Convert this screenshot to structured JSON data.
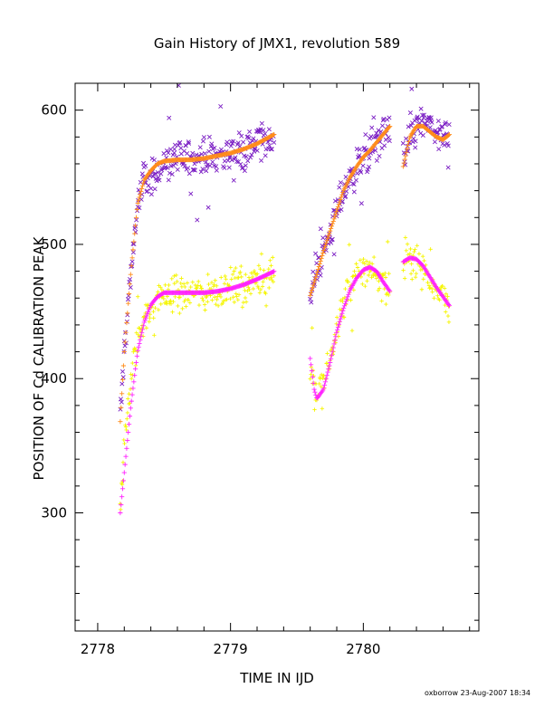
{
  "chart_data": {
    "type": "scatter",
    "title": "Gain History of JMX1, revolution 589",
    "xlabel": "TIME IN IJD",
    "ylabel": "POSITION OF Cd CALIBRATION PEAK",
    "footer": "oxborrow 23-Aug-2007 18:34",
    "xlim": [
      2777.83,
      2780.87
    ],
    "ylim": [
      212,
      620
    ],
    "x_major_ticks": [
      2778,
      2779,
      2780
    ],
    "x_tick_labels": [
      "2778",
      "2779",
      "2780"
    ],
    "y_major_ticks": [
      300,
      400,
      500,
      600
    ],
    "y_tick_labels": [
      "300",
      "400",
      "500",
      "600"
    ],
    "y_minor_step": 20,
    "x_minor_step": 0.2,
    "grid": false,
    "legend": "none",
    "colors": {
      "upper_points": "#7b1fc4",
      "upper_fit": "#ff8c1a",
      "lower_points": "#f5f500",
      "lower_fit": "#ff22ff"
    },
    "series": [
      {
        "role": "upper_points",
        "marker": "x",
        "segments": [
          {
            "x": [
              2778.17,
              2778.2,
              2778.25,
              2778.3,
              2778.35,
              2778.4,
              2778.45,
              2778.5,
              2778.6,
              2778.7,
              2778.8,
              2778.9,
              2779.0,
              2779.1,
              2779.2,
              2779.33
            ],
            "y": [
              370,
              420,
              480,
              530,
              545,
              550,
              555,
              560,
              563,
              565,
              565,
              566,
              568,
              570,
              575,
              580
            ]
          },
          {
            "x": [
              2779.6,
              2779.65,
              2779.7,
              2779.75,
              2779.8,
              2779.85,
              2779.9,
              2779.95,
              2780.0,
              2780.05,
              2780.1,
              2780.15,
              2780.2
            ],
            "y": [
              462,
              478,
              495,
              510,
              525,
              540,
              550,
              558,
              565,
              570,
              576,
              582,
              586
            ]
          },
          {
            "x": [
              2780.3,
              2780.35,
              2780.4,
              2780.45,
              2780.5,
              2780.55,
              2780.6,
              2780.65
            ],
            "y": [
              562,
              580,
              588,
              590,
              588,
              582,
              578,
              582
            ]
          }
        ],
        "scatter": 28
      },
      {
        "role": "upper_fit",
        "marker": "+",
        "segments": [
          {
            "x": [
              2778.17,
              2778.2,
              2778.25,
              2778.3,
              2778.35,
              2778.4,
              2778.45,
              2778.5,
              2778.6,
              2778.7,
              2778.8,
              2778.9,
              2779.0,
              2779.1,
              2779.2,
              2779.33
            ],
            "y": [
              368,
              420,
              480,
              530,
              548,
              555,
              560,
              562,
              563,
              563,
              564,
              566,
              568,
              571,
              575,
              582
            ]
          },
          {
            "x": [
              2779.6,
              2779.65,
              2779.7,
              2779.75,
              2779.8,
              2779.85,
              2779.9,
              2779.95,
              2780.0,
              2780.05,
              2780.1,
              2780.15,
              2780.2
            ],
            "y": [
              462,
              478,
              495,
              510,
              525,
              540,
              550,
              558,
              565,
              570,
              576,
              582,
              588
            ]
          },
          {
            "x": [
              2780.3,
              2780.35,
              2780.4,
              2780.45,
              2780.5,
              2780.55,
              2780.6,
              2780.65
            ],
            "y": [
              558,
              580,
              588,
              588,
              584,
              580,
              578,
              582
            ]
          }
        ],
        "scatter": 0
      },
      {
        "role": "lower_points",
        "marker": "+",
        "segments": [
          {
            "x": [
              2778.17,
              2778.2,
              2778.25,
              2778.3,
              2778.35,
              2778.4,
              2778.45,
              2778.5,
              2778.6,
              2778.7,
              2778.8,
              2778.9,
              2779.0,
              2779.1,
              2779.2,
              2779.33
            ],
            "y": [
              305,
              350,
              400,
              430,
              445,
              452,
              458,
              462,
              464,
              464,
              464,
              466,
              468,
              470,
              474,
              480
            ]
          },
          {
            "x": [
              2779.6,
              2779.63,
              2779.65,
              2779.7,
              2779.75,
              2779.8,
              2779.85,
              2779.9,
              2779.95,
              2780.0,
              2780.05,
              2780.1,
              2780.15,
              2780.2
            ],
            "y": [
              410,
              395,
              388,
              395,
              415,
              438,
              455,
              468,
              476,
              481,
              482,
              478,
              470,
              465
            ]
          },
          {
            "x": [
              2780.3,
              2780.35,
              2780.4,
              2780.45,
              2780.5,
              2780.55,
              2780.6,
              2780.65
            ],
            "y": [
              490,
              492,
              488,
              482,
              475,
              468,
              462,
              455
            ]
          }
        ],
        "scatter": 26
      },
      {
        "role": "lower_fit",
        "marker": "+",
        "segments": [
          {
            "x": [
              2778.17,
              2778.2,
              2778.25,
              2778.3,
              2778.35,
              2778.4,
              2778.45,
              2778.5,
              2778.6,
              2778.7,
              2778.8,
              2778.9,
              2779.0,
              2779.1,
              2779.2,
              2779.33
            ],
            "y": [
              300,
              330,
              380,
              420,
              442,
              455,
              461,
              464,
              464,
              464,
              464,
              465,
              467,
              470,
              474,
              480
            ]
          },
          {
            "x": [
              2779.6,
              2779.63,
              2779.65,
              2779.7,
              2779.75,
              2779.8,
              2779.85,
              2779.9,
              2779.95,
              2780.0,
              2780.05,
              2780.1,
              2780.15,
              2780.2
            ],
            "y": [
              415,
              392,
              385,
              392,
              412,
              435,
              452,
              466,
              475,
              481,
              483,
              480,
              472,
              465
            ]
          },
          {
            "x": [
              2780.3,
              2780.35,
              2780.4,
              2780.45,
              2780.5,
              2780.55,
              2780.6,
              2780.65
            ],
            "y": [
              487,
              490,
              489,
              484,
              476,
              468,
              461,
              454
            ]
          }
        ],
        "scatter": 0
      }
    ]
  }
}
